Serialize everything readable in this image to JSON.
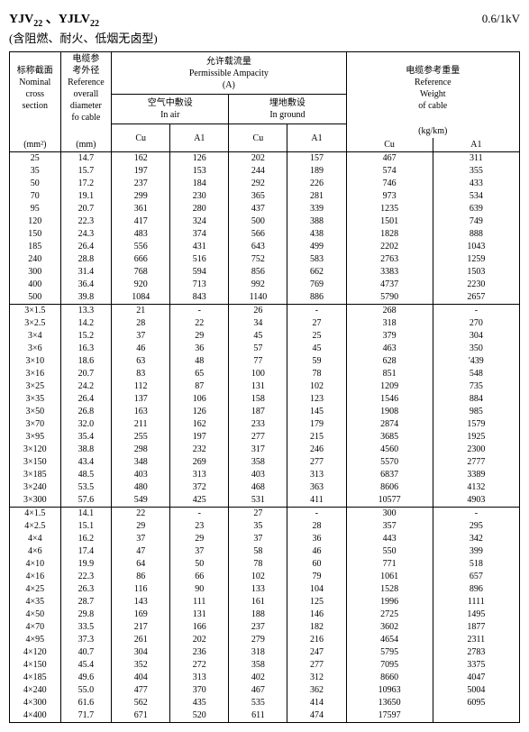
{
  "header": {
    "title_html": "YJV<span class='sub'>22</span> 、YJLV<span class='sub'>22</span>",
    "subtitle": "(含阻燃、耐火、低烟无卤型)",
    "voltage": "0.6/1kV"
  },
  "columns": {
    "nominal": "标称截面<br>Nominal<br>cross<br>section",
    "nominal_unit": "(mm²)",
    "diameter": "电缆参<br>考外径<br>Reference<br>overall<br>diameter<br>fo cable",
    "diameter_unit": "(mm)",
    "ampacity": "允许载流量<br>Permissible Ampacity<br>(A)",
    "in_air": "空气中敷设<br>In air",
    "in_ground": "埋地敷设<br>In ground",
    "weight": "电缆参考重量<br>Reference<br>Weight<br>of cable",
    "weight_unit": "(kg/km)",
    "cu": "Cu",
    "al": "A1"
  },
  "groups": [
    {
      "rows": [
        [
          "25",
          "14.7",
          "162",
          "126",
          "202",
          "157",
          "467",
          "311"
        ],
        [
          "35",
          "15.7",
          "197",
          "153",
          "244",
          "189",
          "574",
          "355"
        ],
        [
          "50",
          "17.2",
          "237",
          "184",
          "292",
          "226",
          "746",
          "433"
        ],
        [
          "70",
          "19.1",
          "299",
          "230",
          "365",
          "281",
          "973",
          "534"
        ],
        [
          "95",
          "20.7",
          "361",
          "280",
          "437",
          "339",
          "1235",
          "639"
        ],
        [
          "120",
          "22.3",
          "417",
          "324",
          "500",
          "388",
          "1501",
          "749"
        ],
        [
          "150",
          "24.3",
          "483",
          "374",
          "566",
          "438",
          "1828",
          "888"
        ],
        [
          "185",
          "26.4",
          "556",
          "431",
          "643",
          "499",
          "2202",
          "1043"
        ],
        [
          "240",
          "28.8",
          "666",
          "516",
          "752",
          "583",
          "2763",
          "1259"
        ],
        [
          "300",
          "31.4",
          "768",
          "594",
          "856",
          "662",
          "3383",
          "1503"
        ],
        [
          "400",
          "36.4",
          "920",
          "713",
          "992",
          "769",
          "4737",
          "2230"
        ],
        [
          "500",
          "39.8",
          "1084",
          "843",
          "1140",
          "886",
          "5790",
          "2657"
        ]
      ]
    },
    {
      "rows": [
        [
          "3×1.5",
          "13.3",
          "21",
          "-",
          "26",
          "-",
          "268",
          "-"
        ],
        [
          "3×2.5",
          "14.2",
          "28",
          "22",
          "34",
          "27",
          "318",
          "270"
        ],
        [
          "3×4",
          "15.2",
          "37",
          "29",
          "45",
          "25",
          "379",
          "304"
        ],
        [
          "3×6",
          "16.3",
          "46",
          "36",
          "57",
          "45",
          "463",
          "350"
        ],
        [
          "3×10",
          "18.6",
          "63",
          "48",
          "77",
          "59",
          "628",
          "'439"
        ],
        [
          "3×16",
          "20.7",
          "83",
          "65",
          "100",
          "78",
          "851",
          "548"
        ],
        [
          "3×25",
          "24.2",
          "112",
          "87",
          "131",
          "102",
          "1209",
          "735"
        ],
        [
          "3×35",
          "26.4",
          "137",
          "106",
          "158",
          "123",
          "1546",
          "884"
        ],
        [
          "3×50",
          "26.8",
          "163",
          "126",
          "187",
          "145",
          "1908",
          "985"
        ],
        [
          "3×70",
          "32.0",
          "211",
          "162",
          "233",
          "179",
          "2874",
          "1579"
        ],
        [
          "3×95",
          "35.4",
          "255",
          "197",
          "277",
          "215",
          "3685",
          "1925"
        ],
        [
          "3×120",
          "38.8",
          "298",
          "232",
          "317",
          "246",
          "4560",
          "2300"
        ],
        [
          "3×150",
          "43.4",
          "348",
          "269",
          "358",
          "277",
          "5570",
          "2777"
        ],
        [
          "3×185",
          "48.5",
          "403",
          "313",
          "403",
          "313",
          "6837",
          "3389"
        ],
        [
          "3×240",
          "53.5",
          "480",
          "372",
          "468",
          "363",
          "8606",
          "4132"
        ],
        [
          "3×300",
          "57.6",
          "549",
          "425",
          "531",
          "411",
          "10577",
          "4903"
        ]
      ]
    },
    {
      "rows": [
        [
          "4×1.5",
          "14.1",
          "22",
          "-",
          "27",
          "-",
          "300",
          "-"
        ],
        [
          "4×2.5",
          "15.1",
          "29",
          "23",
          "35",
          "28",
          "357",
          "295"
        ],
        [
          "4×4",
          "16.2",
          "37",
          "29",
          "37",
          "36",
          "443",
          "342"
        ],
        [
          "4×6",
          "17.4",
          "47",
          "37",
          "58",
          "46",
          "550",
          "399"
        ],
        [
          "4×10",
          "19.9",
          "64",
          "50",
          "78",
          "60",
          "771",
          "518"
        ],
        [
          "4×16",
          "22.3",
          "86",
          "66",
          "102",
          "79",
          "1061",
          "657"
        ],
        [
          "4×25",
          "26.3",
          "116",
          "90",
          "133",
          "104",
          "1528",
          "896"
        ],
        [
          "4×35",
          "28.7",
          "143",
          "111",
          "161",
          "125",
          "1996",
          "1111"
        ],
        [
          "4×50",
          "29.8",
          "169",
          "131",
          "188",
          "146",
          "2725",
          "1495"
        ],
        [
          "4×70",
          "33.5",
          "217",
          "166",
          "237",
          "182",
          "3602",
          "1877"
        ],
        [
          "4×95",
          "37.3",
          "261",
          "202",
          "279",
          "216",
          "4654",
          "2311"
        ],
        [
          "4×120",
          "40.7",
          "304",
          "236",
          "318",
          "247",
          "5795",
          "2783"
        ],
        [
          "4×150",
          "45.4",
          "352",
          "272",
          "358",
          "277",
          "7095",
          "3375"
        ],
        [
          "4×185",
          "49.6",
          "404",
          "313",
          "402",
          "312",
          "8660",
          "4047"
        ],
        [
          "4×240",
          "55.0",
          "477",
          "370",
          "467",
          "362",
          "10963",
          "5004"
        ],
        [
          "4×300",
          "61.6",
          "562",
          "435",
          "535",
          "414",
          "13650",
          "6095"
        ],
        [
          "4×400",
          "71.7",
          "671",
          "520",
          "611",
          "474",
          "17597",
          ""
        ]
      ]
    }
  ]
}
